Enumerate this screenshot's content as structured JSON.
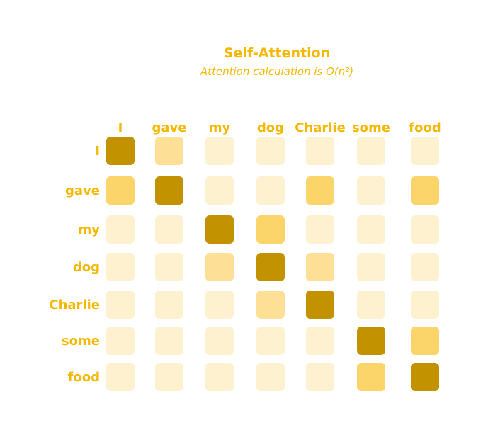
{
  "title": "Self-Attention",
  "subtitle": "Attention calculation is O(n²)",
  "tokens": [
    "I",
    "gave",
    "my",
    "dog",
    "Charlie",
    "some",
    "food"
  ],
  "colors": {
    "label": "#f5b800",
    "level_0": "#fdf1cf",
    "level_1": "#fde096",
    "level_2": "#fcd56a",
    "level_3": "#c39200"
  },
  "matrix": [
    [
      3,
      1,
      0,
      0,
      0,
      0,
      0
    ],
    [
      2,
      3,
      0,
      0,
      2,
      0,
      2
    ],
    [
      0,
      0,
      3,
      2,
      0,
      0,
      0
    ],
    [
      0,
      0,
      1,
      3,
      1,
      0,
      0
    ],
    [
      0,
      0,
      0,
      1,
      3,
      0,
      0
    ],
    [
      0,
      0,
      0,
      0,
      0,
      3,
      2
    ],
    [
      0,
      0,
      0,
      0,
      0,
      2,
      3
    ]
  ]
}
